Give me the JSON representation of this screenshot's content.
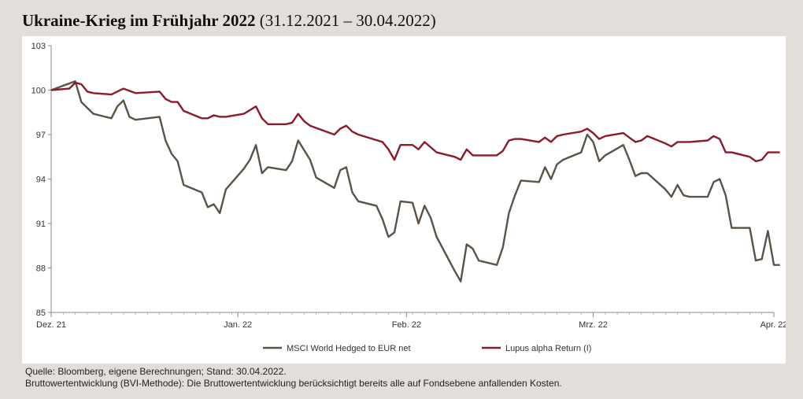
{
  "header": {
    "title": "Ukraine-Krieg im Frühjahr 2022",
    "subtitle": "(31.12.2021 – 30.04.2022)"
  },
  "footer": {
    "source": "Quelle: Bloomberg, eigene Berechnungen; Stand: 30.04.2022.",
    "note": "Bruttowertentwicklung (BVI-Methode): Die Bruttowertentwicklung berücksichtigt bereits alle auf Fondsebene anfallenden Kosten."
  },
  "chart_data": {
    "type": "line",
    "title": "Ukraine-Krieg im Frühjahr 2022",
    "xlabel": "",
    "ylabel": "",
    "ylim": [
      85,
      103
    ],
    "yticks": [
      85,
      88,
      91,
      94,
      97,
      100,
      103
    ],
    "xlim": [
      "2021-12-31",
      "2022-04-30"
    ],
    "xticks": [
      {
        "label": "Dez. 21",
        "date": "2021-12-31"
      },
      {
        "label": "Jan. 22",
        "date": "2022-01-31"
      },
      {
        "label": "Feb. 22",
        "date": "2022-02-28"
      },
      {
        "label": "Mrz. 22",
        "date": "2022-03-31"
      },
      {
        "label": "Apr. 22",
        "date": "2022-04-30"
      }
    ],
    "grid": false,
    "legend_position": "bottom",
    "colors": {
      "msci": "#5c5248",
      "lupus": "#8b1a2b"
    },
    "series": [
      {
        "name": "MSCI World Hedged to EUR net",
        "color": "#5c5248",
        "points": [
          [
            "2021-12-31",
            100.0
          ],
          [
            "2022-01-04",
            100.6
          ],
          [
            "2022-01-05",
            99.2
          ],
          [
            "2022-01-06",
            98.8
          ],
          [
            "2022-01-07",
            98.4
          ],
          [
            "2022-01-10",
            98.1
          ],
          [
            "2022-01-11",
            98.9
          ],
          [
            "2022-01-12",
            99.3
          ],
          [
            "2022-01-13",
            98.2
          ],
          [
            "2022-01-14",
            98.0
          ],
          [
            "2022-01-18",
            98.2
          ],
          [
            "2022-01-19",
            96.6
          ],
          [
            "2022-01-20",
            95.7
          ],
          [
            "2022-01-21",
            95.2
          ],
          [
            "2022-01-22",
            93.6
          ],
          [
            "2022-01-25",
            93.1
          ],
          [
            "2022-01-26",
            92.1
          ],
          [
            "2022-01-27",
            92.3
          ],
          [
            "2022-01-28",
            91.7
          ],
          [
            "2022-01-29",
            93.3
          ],
          [
            "2022-02-01",
            94.7
          ],
          [
            "2022-02-02",
            95.3
          ],
          [
            "2022-02-03",
            96.3
          ],
          [
            "2022-02-04",
            94.4
          ],
          [
            "2022-02-05",
            94.8
          ],
          [
            "2022-02-08",
            94.6
          ],
          [
            "2022-02-09",
            95.2
          ],
          [
            "2022-02-10",
            96.6
          ],
          [
            "2022-02-12",
            95.3
          ],
          [
            "2022-02-13",
            94.1
          ],
          [
            "2022-02-16",
            93.4
          ],
          [
            "2022-02-17",
            94.6
          ],
          [
            "2022-02-18",
            94.8
          ],
          [
            "2022-02-19",
            93.1
          ],
          [
            "2022-02-20",
            92.5
          ],
          [
            "2022-02-23",
            92.2
          ],
          [
            "2022-02-24",
            91.3
          ],
          [
            "2022-02-25",
            90.1
          ],
          [
            "2022-02-26",
            90.4
          ],
          [
            "2022-02-27",
            92.5
          ],
          [
            "2022-03-01",
            92.4
          ],
          [
            "2022-03-02",
            91.0
          ],
          [
            "2022-03-03",
            92.2
          ],
          [
            "2022-03-04",
            91.4
          ],
          [
            "2022-03-05",
            90.1
          ],
          [
            "2022-03-08",
            87.8
          ],
          [
            "2022-03-09",
            87.1
          ],
          [
            "2022-03-10",
            89.6
          ],
          [
            "2022-03-11",
            89.3
          ],
          [
            "2022-03-12",
            88.5
          ],
          [
            "2022-03-15",
            88.2
          ],
          [
            "2022-03-16",
            89.4
          ],
          [
            "2022-03-17",
            91.7
          ],
          [
            "2022-03-18",
            92.9
          ],
          [
            "2022-03-19",
            93.9
          ],
          [
            "2022-03-22",
            93.8
          ],
          [
            "2022-03-23",
            94.8
          ],
          [
            "2022-03-24",
            94.0
          ],
          [
            "2022-03-25",
            95.0
          ],
          [
            "2022-03-26",
            95.3
          ],
          [
            "2022-03-29",
            95.8
          ],
          [
            "2022-03-30",
            97.0
          ],
          [
            "2022-03-31",
            96.5
          ],
          [
            "2022-04-01",
            95.2
          ],
          [
            "2022-04-02",
            95.6
          ],
          [
            "2022-04-05",
            96.3
          ],
          [
            "2022-04-06",
            95.3
          ],
          [
            "2022-04-07",
            94.2
          ],
          [
            "2022-04-08",
            94.4
          ],
          [
            "2022-04-09",
            94.4
          ],
          [
            "2022-04-12",
            93.3
          ],
          [
            "2022-04-13",
            92.8
          ],
          [
            "2022-04-14",
            93.6
          ],
          [
            "2022-04-15",
            92.9
          ],
          [
            "2022-04-16",
            92.8
          ],
          [
            "2022-04-19",
            92.8
          ],
          [
            "2022-04-20",
            93.8
          ],
          [
            "2022-04-21",
            94.0
          ],
          [
            "2022-04-22",
            92.9
          ],
          [
            "2022-04-23",
            90.7
          ],
          [
            "2022-04-26",
            90.7
          ],
          [
            "2022-04-27",
            88.5
          ],
          [
            "2022-04-28",
            88.6
          ],
          [
            "2022-04-29",
            90.5
          ],
          [
            "2022-04-30",
            88.2
          ],
          [
            "2022-05-01",
            88.2
          ]
        ]
      },
      {
        "name": "Lupus alpha Return (I)",
        "color": "#8b1a2b",
        "points": [
          [
            "2021-12-31",
            100.0
          ],
          [
            "2022-01-03",
            100.1
          ],
          [
            "2022-01-04",
            100.5
          ],
          [
            "2022-01-05",
            100.4
          ],
          [
            "2022-01-06",
            99.9
          ],
          [
            "2022-01-07",
            99.8
          ],
          [
            "2022-01-10",
            99.7
          ],
          [
            "2022-01-12",
            100.1
          ],
          [
            "2022-01-14",
            99.8
          ],
          [
            "2022-01-18",
            99.9
          ],
          [
            "2022-01-19",
            99.4
          ],
          [
            "2022-01-20",
            99.2
          ],
          [
            "2022-01-21",
            99.2
          ],
          [
            "2022-01-22",
            98.6
          ],
          [
            "2022-01-25",
            98.1
          ],
          [
            "2022-01-26",
            98.1
          ],
          [
            "2022-01-27",
            98.3
          ],
          [
            "2022-01-28",
            98.2
          ],
          [
            "2022-01-29",
            98.2
          ],
          [
            "2022-02-01",
            98.4
          ],
          [
            "2022-02-03",
            98.9
          ],
          [
            "2022-02-04",
            98.1
          ],
          [
            "2022-02-05",
            97.7
          ],
          [
            "2022-02-08",
            97.7
          ],
          [
            "2022-02-09",
            97.8
          ],
          [
            "2022-02-10",
            98.4
          ],
          [
            "2022-02-11",
            97.9
          ],
          [
            "2022-02-12",
            97.6
          ],
          [
            "2022-02-16",
            97.0
          ],
          [
            "2022-02-17",
            97.4
          ],
          [
            "2022-02-18",
            97.6
          ],
          [
            "2022-02-19",
            97.2
          ],
          [
            "2022-02-20",
            97.0
          ],
          [
            "2022-02-24",
            96.5
          ],
          [
            "2022-02-25",
            96.0
          ],
          [
            "2022-02-26",
            95.3
          ],
          [
            "2022-02-27",
            96.3
          ],
          [
            "2022-03-01",
            96.3
          ],
          [
            "2022-03-02",
            96.0
          ],
          [
            "2022-03-03",
            96.5
          ],
          [
            "2022-03-05",
            95.8
          ],
          [
            "2022-03-08",
            95.5
          ],
          [
            "2022-03-09",
            95.3
          ],
          [
            "2022-03-10",
            96.0
          ],
          [
            "2022-03-11",
            95.6
          ],
          [
            "2022-03-15",
            95.6
          ],
          [
            "2022-03-16",
            95.9
          ],
          [
            "2022-03-17",
            96.6
          ],
          [
            "2022-03-18",
            96.7
          ],
          [
            "2022-03-19",
            96.7
          ],
          [
            "2022-03-22",
            96.5
          ],
          [
            "2022-03-23",
            96.8
          ],
          [
            "2022-03-24",
            96.5
          ],
          [
            "2022-03-25",
            96.9
          ],
          [
            "2022-03-26",
            97.0
          ],
          [
            "2022-03-29",
            97.2
          ],
          [
            "2022-03-30",
            97.4
          ],
          [
            "2022-03-31",
            97.1
          ],
          [
            "2022-04-01",
            96.7
          ],
          [
            "2022-04-02",
            96.9
          ],
          [
            "2022-04-05",
            97.1
          ],
          [
            "2022-04-06",
            96.8
          ],
          [
            "2022-04-07",
            96.5
          ],
          [
            "2022-04-08",
            96.6
          ],
          [
            "2022-04-09",
            96.9
          ],
          [
            "2022-04-12",
            96.4
          ],
          [
            "2022-04-13",
            96.2
          ],
          [
            "2022-04-14",
            96.5
          ],
          [
            "2022-04-15",
            96.5
          ],
          [
            "2022-04-16",
            96.5
          ],
          [
            "2022-04-19",
            96.6
          ],
          [
            "2022-04-20",
            96.9
          ],
          [
            "2022-04-21",
            96.7
          ],
          [
            "2022-04-22",
            95.8
          ],
          [
            "2022-04-23",
            95.8
          ],
          [
            "2022-04-26",
            95.5
          ],
          [
            "2022-04-27",
            95.2
          ],
          [
            "2022-04-28",
            95.3
          ],
          [
            "2022-04-29",
            95.8
          ],
          [
            "2022-04-30",
            95.8
          ],
          [
            "2022-05-01",
            95.8
          ]
        ]
      }
    ]
  }
}
